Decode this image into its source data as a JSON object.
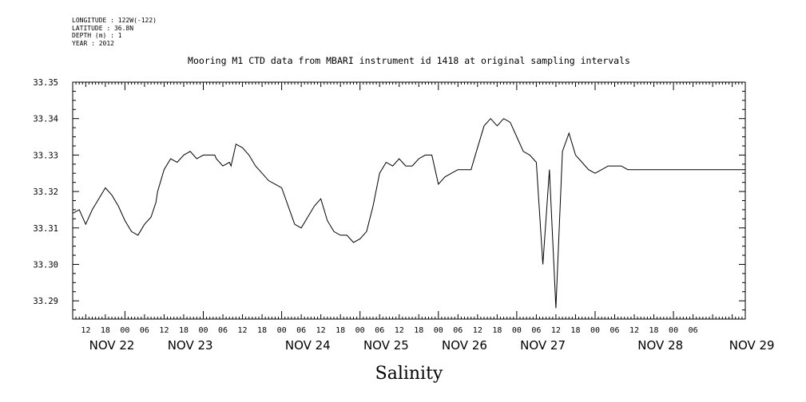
{
  "header": {
    "longitude": "LONGITUDE : 122W(-122)",
    "latitude": "LATITUDE : 36.8N",
    "depth": "DEPTH (m) : 1",
    "year": "YEAR : 2012"
  },
  "chart_data": {
    "type": "line",
    "title": "Mooring M1 CTD data from MBARI instrument id 1418 at original sampling intervals",
    "xlabel": "Salinity",
    "ylabel": "",
    "ylim": [
      33.285,
      33.35
    ],
    "xlim_hours": [
      0,
      206
    ],
    "yticks": [
      "33.35",
      "33.34",
      "33.33",
      "33.32",
      "33.31",
      "33.30",
      "33.29"
    ],
    "xticks_hours": [
      "12",
      "18",
      "00",
      "06",
      "12",
      "18",
      "00",
      "06",
      "12",
      "18",
      "00",
      "06",
      "12",
      "18",
      "00",
      "06",
      "12",
      "18",
      "00",
      "06",
      "12",
      "18",
      "00",
      "06",
      "12",
      "18",
      "00",
      "06",
      "12",
      "18",
      "00",
      "06"
    ],
    "day_labels": [
      "NOV 22",
      "NOV 23",
      "NOV 24",
      "NOV 25",
      "NOV 26",
      "NOV 27",
      "NOV 28",
      "NOV 29"
    ],
    "grid": false,
    "series": [
      {
        "x": [
          0,
          2,
          4,
          6,
          8,
          10,
          12,
          14,
          16,
          18,
          20,
          22,
          24,
          25.5,
          26,
          28,
          30,
          32,
          34,
          36,
          38,
          40,
          42,
          43.5,
          44,
          46,
          48,
          48.5,
          50,
          52,
          54,
          56,
          58,
          60,
          62,
          64,
          66,
          68,
          70,
          72,
          74,
          76,
          77,
          78,
          80,
          82,
          84,
          86,
          88,
          90,
          92,
          94,
          96,
          98,
          100,
          102,
          104,
          106,
          108,
          110,
          112,
          114,
          116,
          118,
          120,
          122,
          124,
          126,
          128,
          129,
          130,
          131,
          132,
          134,
          136,
          138,
          140,
          142,
          144,
          146,
          148,
          150,
          152,
          154,
          156,
          158,
          160,
          162,
          164,
          166,
          168,
          170,
          172,
          174,
          176,
          178,
          180,
          182,
          184,
          186,
          187,
          188,
          189,
          190,
          192,
          194,
          196,
          198,
          200,
          202,
          204,
          206
        ],
        "values": [
          33.314,
          33.315,
          33.311,
          33.315,
          33.318,
          33.321,
          33.319,
          33.316,
          33.312,
          33.309,
          33.308,
          33.311,
          33.313,
          33.317,
          33.32,
          33.326,
          33.329,
          33.328,
          33.33,
          33.331,
          33.329,
          33.33,
          33.33,
          33.33,
          33.329,
          33.327,
          33.328,
          33.327,
          33.333,
          33.332,
          33.33,
          33.327,
          33.325,
          33.323,
          33.322,
          33.321,
          33.316,
          33.311,
          33.31,
          33.313,
          33.316,
          33.318,
          33.315,
          33.312,
          33.309,
          33.308,
          33.308,
          33.306,
          33.307,
          33.309,
          33.316,
          33.325,
          33.328,
          33.327,
          33.329,
          33.327,
          33.327,
          33.329,
          33.33,
          33.33,
          33.322,
          33.324,
          33.325,
          33.326,
          33.326,
          33.326,
          33.332,
          33.338,
          33.34,
          33.339,
          33.338,
          33.339,
          33.34,
          33.339,
          33.335,
          33.331,
          33.33,
          33.328,
          33.3,
          33.326,
          33.288,
          33.331,
          33.336,
          33.33,
          33.328,
          33.326,
          33.325,
          33.326,
          33.327,
          33.327,
          33.327,
          33.326,
          33.326,
          33.326,
          33.326,
          33.326,
          33.326,
          33.326,
          33.326,
          33.326,
          33.326,
          33.326,
          33.326,
          33.326,
          33.326,
          33.326,
          33.326,
          33.326,
          33.326,
          33.326,
          33.326,
          33.326
        ]
      }
    ],
    "line_color": "#000000"
  }
}
